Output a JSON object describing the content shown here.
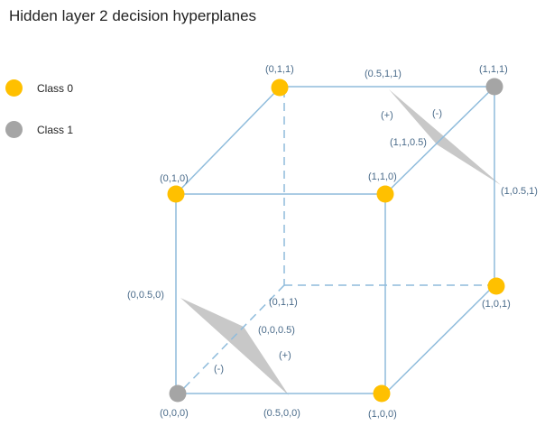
{
  "title": "Hidden layer 2 decision hyperplanes",
  "legend": [
    {
      "label": "Class 0",
      "color": "#ffc000"
    },
    {
      "label": "Class 1",
      "color": "#a5a5a5"
    }
  ],
  "vertices": [
    {
      "label": "(0,0,0)",
      "class": 1
    },
    {
      "label": "(1,0,0)",
      "class": 0
    },
    {
      "label": "(0,1,0)",
      "class": 0
    },
    {
      "label": "(1,1,0)",
      "class": 0
    },
    {
      "label": "(0,1,1)",
      "class": 0
    },
    {
      "label": "(1,1,1)",
      "class": 1
    },
    {
      "label": "(1,0,1)",
      "class": 0
    }
  ],
  "hidden_vertex_label": "(0,1,1)",
  "plane_labels": {
    "top": {
      "points": [
        "(0.5,1,1)",
        "(1,1,0.5)",
        "(1,0.5,1)"
      ],
      "plus": "(+)",
      "minus": "(-)"
    },
    "bottom": {
      "points": [
        "(0,0.5,0)",
        "(0,0,0.5)",
        "(0.5,0,0)"
      ],
      "plus": "(+)",
      "minus": "(-)"
    }
  },
  "colors": {
    "class0": "#ffc000",
    "class1": "#a5a5a5",
    "edge": "#8fbcdc",
    "label": "#4a6b8a",
    "plane": "#c8c8c8"
  }
}
